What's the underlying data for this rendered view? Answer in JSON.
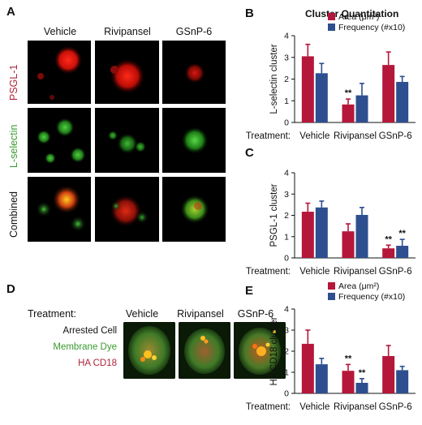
{
  "figure": {
    "panel_letters": {
      "A": "A",
      "B": "B",
      "C": "C",
      "D": "D",
      "E": "E"
    },
    "panelA": {
      "columns": [
        "Vehicle",
        "Rivipansel",
        "GSnP-6"
      ],
      "rows": [
        "PSGL-1",
        "L-selectin",
        "Combined"
      ],
      "row_colors": [
        "#b0243a",
        "#3a9a2e",
        "#111111"
      ]
    },
    "panelD": {
      "treatment_label": "Treatment:",
      "columns": [
        "Vehicle",
        "Rivipansel",
        "GSnP-6"
      ],
      "legend": [
        "Arrested Cell",
        "Membrane Dye",
        "HA CD18"
      ],
      "legend_colors": [
        "#111111",
        "#3a9a2e",
        "#b0243a"
      ]
    },
    "cluster_title": "Cluster Quantitation",
    "treatment_label": "Treatment:"
  },
  "chart_data": [
    {
      "panel": "B",
      "type": "bar",
      "categories": [
        "Vehicle",
        "Rivipansel",
        "GSnP-6"
      ],
      "ylabel": "L-selectin cluster",
      "ylim": [
        0,
        4
      ],
      "yticks": [
        "0",
        "1",
        "2",
        "3",
        "4"
      ],
      "legend": true,
      "series": [
        {
          "name": "Area (μm²)",
          "color": "#b5173a",
          "values": [
            3.05,
            0.83,
            2.65
          ],
          "errors": [
            0.55,
            0.25,
            0.6
          ]
        },
        {
          "name": "Frequency (#x10)",
          "color": "#2e4f8f",
          "values": [
            2.27,
            1.25,
            1.87
          ],
          "errors": [
            0.45,
            0.55,
            0.25
          ]
        }
      ],
      "annotations": [
        {
          "category": 1,
          "series": 0,
          "text": "**"
        }
      ]
    },
    {
      "panel": "C",
      "type": "bar",
      "categories": [
        "Vehicle",
        "Rivipansel",
        "GSnP-6"
      ],
      "ylabel": "PSGL-1 cluster",
      "ylim": [
        0,
        4
      ],
      "yticks": [
        "0",
        "1",
        "2",
        "3",
        "4"
      ],
      "legend": false,
      "series": [
        {
          "name": "Area (μm²)",
          "color": "#b5173a",
          "values": [
            2.17,
            1.25,
            0.45
          ],
          "errors": [
            0.4,
            0.35,
            0.15
          ]
        },
        {
          "name": "Frequency (#x10)",
          "color": "#2e4f8f",
          "values": [
            2.37,
            2.02,
            0.57
          ],
          "errors": [
            0.3,
            0.35,
            0.3
          ]
        }
      ],
      "annotations": [
        {
          "category": 2,
          "series": 0,
          "text": "**"
        },
        {
          "category": 2,
          "series": 1,
          "text": "**"
        }
      ]
    },
    {
      "panel": "E",
      "type": "bar",
      "categories": [
        "Vehicle",
        "Rivipansel",
        "GSnP-6"
      ],
      "ylabel": "HA CD18 cluster",
      "ylim": [
        0,
        4
      ],
      "yticks": [
        "0",
        "1",
        "2",
        "3",
        "4"
      ],
      "legend": true,
      "series": [
        {
          "name": "Area (μm²)",
          "color": "#b5173a",
          "values": [
            2.35,
            1.07,
            1.77
          ],
          "errors": [
            0.65,
            0.3,
            0.5
          ]
        },
        {
          "name": "Frequency (#x10)",
          "color": "#2e4f8f",
          "values": [
            1.38,
            0.5,
            1.1
          ],
          "errors": [
            0.28,
            0.2,
            0.18
          ]
        }
      ],
      "annotations": [
        {
          "category": 1,
          "series": 0,
          "text": "**"
        },
        {
          "category": 1,
          "series": 1,
          "text": "**"
        }
      ]
    }
  ]
}
